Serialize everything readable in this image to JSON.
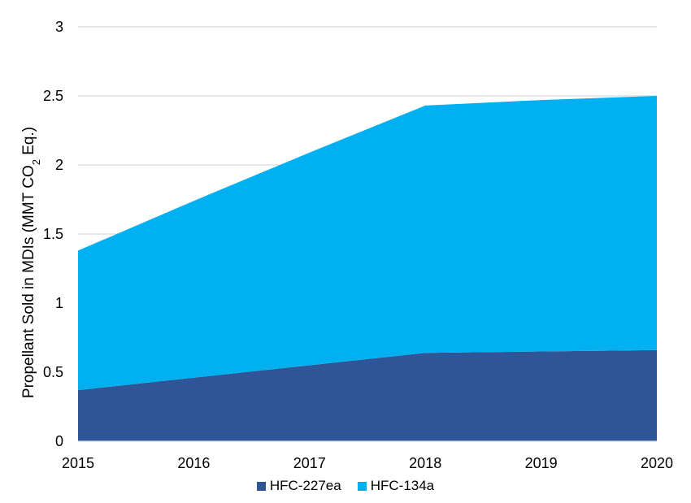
{
  "chart_data": {
    "type": "area",
    "stacked": true,
    "x": [
      2015,
      2016,
      2017,
      2018,
      2019,
      2020
    ],
    "series": [
      {
        "name": "HFC-227ea",
        "color": "#2e5597",
        "values": [
          0.37,
          0.46,
          0.55,
          0.64,
          0.65,
          0.66
        ]
      },
      {
        "name": "HFC-134a",
        "color": "#00b0f0",
        "values": [
          1.01,
          1.28,
          1.54,
          1.79,
          1.82,
          1.84
        ]
      }
    ],
    "ylabel": "Propellant Sold in MDIs (MMT CO",
    "ylabel_subscript": "2",
    "ylabel_suffix": " Eq.)",
    "ylim": [
      0,
      3
    ],
    "yticks": [
      "0",
      "0.5",
      "1",
      "1.5",
      "2",
      "2.5",
      "3"
    ],
    "xticks": [
      "2015",
      "2016",
      "2017",
      "2018",
      "2019",
      "2020"
    ],
    "grid": true,
    "gridline_color": "#d9d9d9",
    "legend_position": "bottom"
  }
}
